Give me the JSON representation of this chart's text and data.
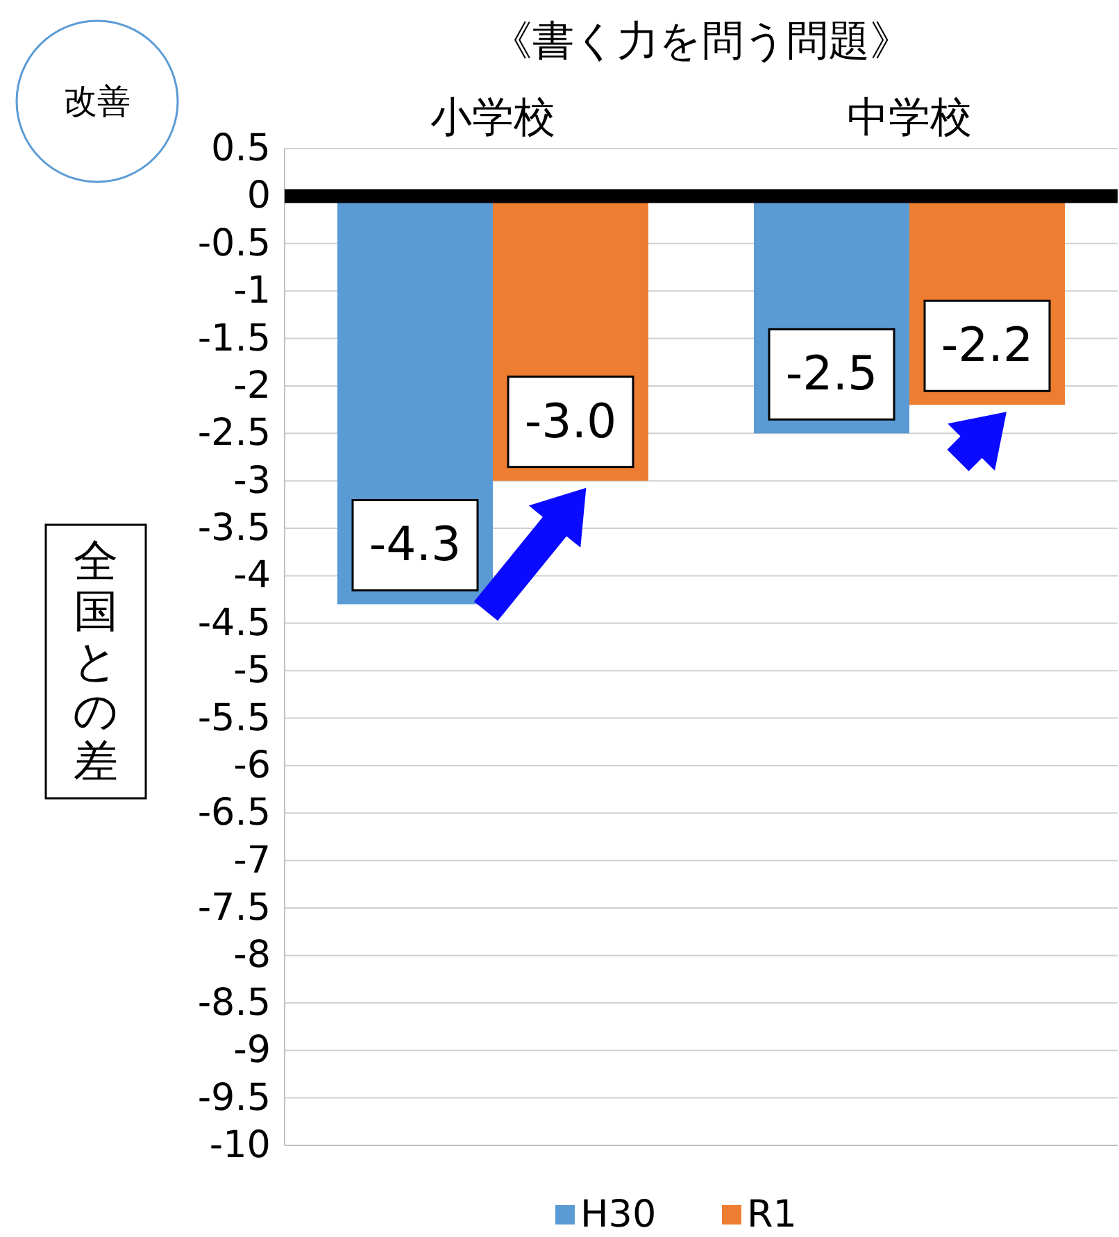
{
  "chart_data": {
    "type": "bar",
    "title": "《書く力を問う問題》",
    "ylabel": "全国との差",
    "annotations": [
      "改善"
    ],
    "categories": [
      "小学校",
      "中学校"
    ],
    "series": [
      {
        "name": "H30",
        "color": "#5b9bd5",
        "values": [
          -4.3,
          -2.5
        ],
        "value_labels": [
          "-4.3",
          "-2.5"
        ]
      },
      {
        "name": "R1",
        "color": "#ed7d31",
        "values": [
          -3.0,
          -2.2
        ],
        "value_labels": [
          "-3.0",
          "-2.2"
        ]
      }
    ],
    "ylim": [
      -10,
      0.5
    ],
    "yticks": [
      0.5,
      0,
      -0.5,
      -1,
      -1.5,
      -2,
      -2.5,
      -3,
      -3.5,
      -4,
      -4.5,
      -5,
      -5.5,
      -6,
      -6.5,
      -7,
      -7.5,
      -8,
      -8.5,
      -9,
      -9.5,
      -10
    ],
    "grid": "y",
    "legend": "bottom"
  }
}
